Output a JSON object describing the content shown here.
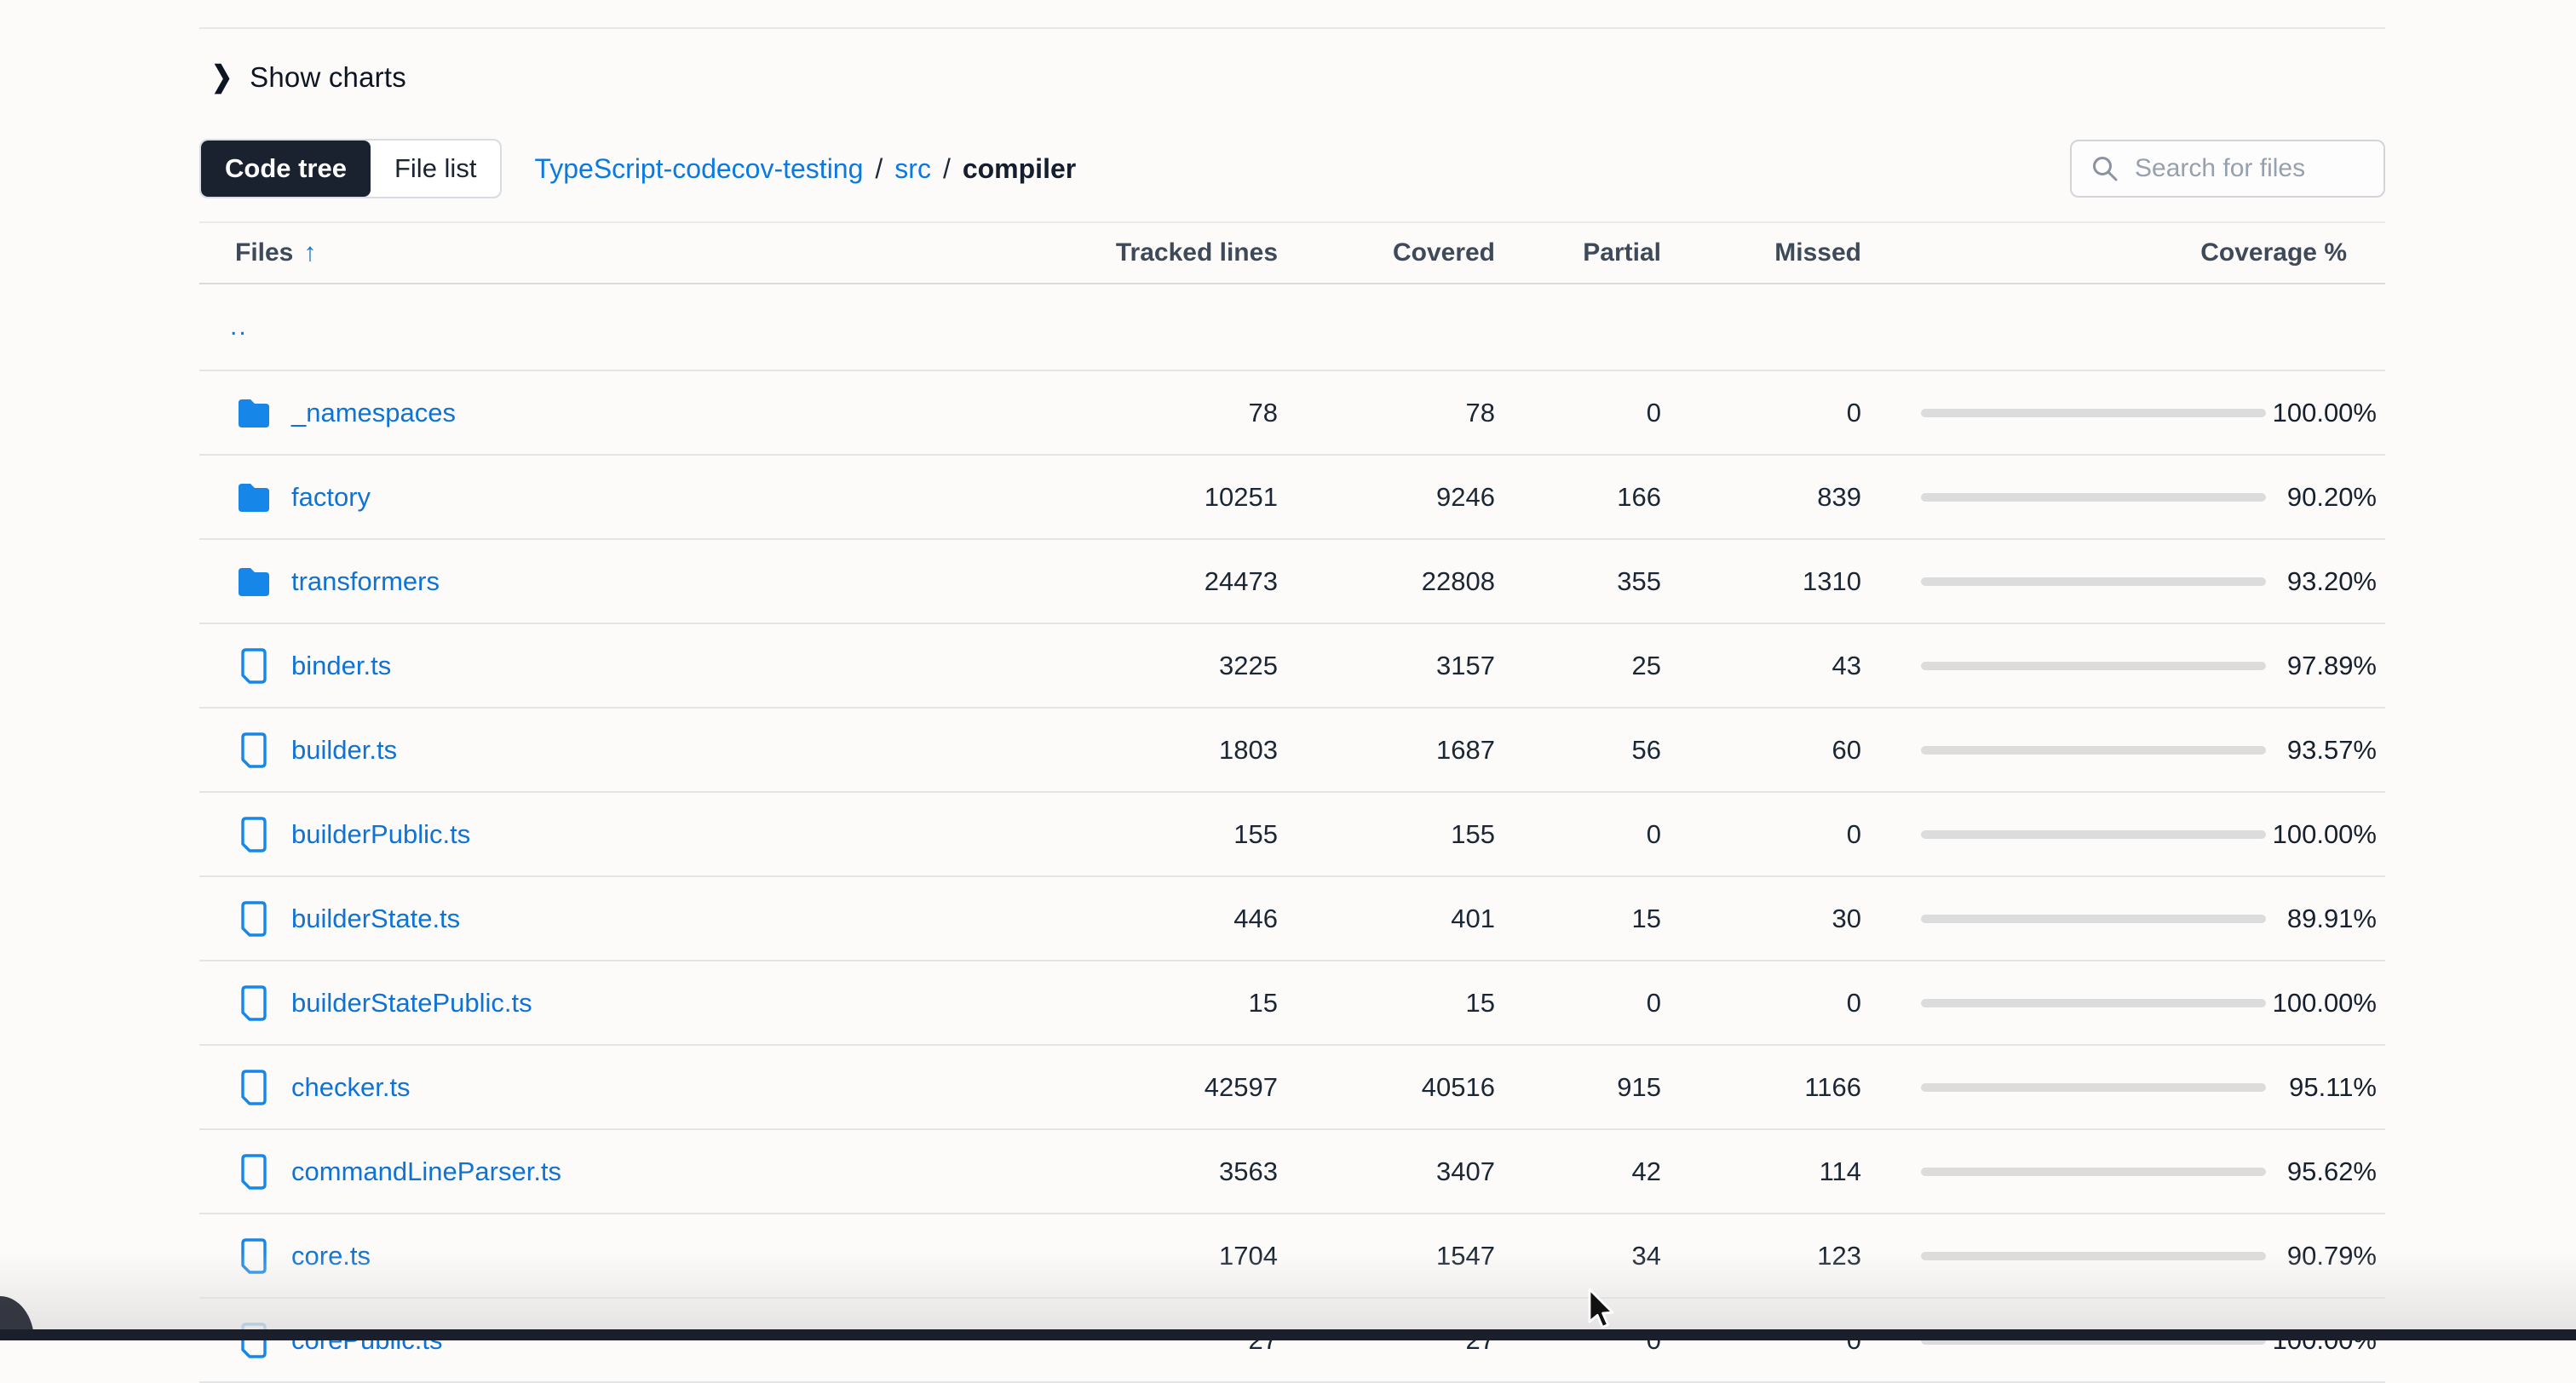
{
  "controls": {
    "show_charts_label": "Show charts",
    "view_toggle": {
      "code_tree": "Code tree",
      "file_list": "File list"
    },
    "search_placeholder": "Search for files"
  },
  "breadcrumb": {
    "repo": "TypeScript-codecov-testing",
    "separator": "/",
    "src": "src",
    "current": "compiler"
  },
  "table": {
    "headers": {
      "files": "Files",
      "sort_icon": "up-arrow",
      "tracked": "Tracked lines",
      "covered": "Covered",
      "partial": "Partial",
      "missed": "Missed",
      "coverage": "Coverage %"
    },
    "rows": [
      {
        "type": "up",
        "name": "..",
        "tracked": "",
        "covered": "",
        "partial": "",
        "missed": "",
        "coverage": "",
        "pct": null
      },
      {
        "type": "folder",
        "name": "_namespaces",
        "tracked": "78",
        "covered": "78",
        "partial": "0",
        "missed": "0",
        "coverage": "100.00%",
        "pct": 100
      },
      {
        "type": "folder",
        "name": "factory",
        "tracked": "10251",
        "covered": "9246",
        "partial": "166",
        "missed": "839",
        "coverage": "90.20%",
        "pct": 90.2
      },
      {
        "type": "folder",
        "name": "transformers",
        "tracked": "24473",
        "covered": "22808",
        "partial": "355",
        "missed": "1310",
        "coverage": "93.20%",
        "pct": 93.2
      },
      {
        "type": "file",
        "name": "binder.ts",
        "tracked": "3225",
        "covered": "3157",
        "partial": "25",
        "missed": "43",
        "coverage": "97.89%",
        "pct": 97.89
      },
      {
        "type": "file",
        "name": "builder.ts",
        "tracked": "1803",
        "covered": "1687",
        "partial": "56",
        "missed": "60",
        "coverage": "93.57%",
        "pct": 93.57
      },
      {
        "type": "file",
        "name": "builderPublic.ts",
        "tracked": "155",
        "covered": "155",
        "partial": "0",
        "missed": "0",
        "coverage": "100.00%",
        "pct": 100
      },
      {
        "type": "file",
        "name": "builderState.ts",
        "tracked": "446",
        "covered": "401",
        "partial": "15",
        "missed": "30",
        "coverage": "89.91%",
        "pct": 89.91
      },
      {
        "type": "file",
        "name": "builderStatePublic.ts",
        "tracked": "15",
        "covered": "15",
        "partial": "0",
        "missed": "0",
        "coverage": "100.00%",
        "pct": 100
      },
      {
        "type": "file",
        "name": "checker.ts",
        "tracked": "42597",
        "covered": "40516",
        "partial": "915",
        "missed": "1166",
        "coverage": "95.11%",
        "pct": 95.11
      },
      {
        "type": "file",
        "name": "commandLineParser.ts",
        "tracked": "3563",
        "covered": "3407",
        "partial": "42",
        "missed": "114",
        "coverage": "95.62%",
        "pct": 95.62
      },
      {
        "type": "file",
        "name": "core.ts",
        "tracked": "1704",
        "covered": "1547",
        "partial": "34",
        "missed": "123",
        "coverage": "90.79%",
        "pct": 90.79
      },
      {
        "type": "file",
        "name": "corePublic.ts",
        "tracked": "27",
        "covered": "27",
        "partial": "0",
        "missed": "0",
        "coverage": "100.00%",
        "pct": 100
      }
    ]
  },
  "colors": {
    "link_blue": "#0e73d4",
    "breadcrumb_blue": "#0a7ae0",
    "folder_icon_blue": "#1687e8",
    "coverage_green": "#26a669",
    "bar_track_gray": "#dcdcdc",
    "selected_tab_bg": "#1a2230",
    "footer_dark": "#1b1e2b",
    "page_bg": "#fdfbf9"
  }
}
